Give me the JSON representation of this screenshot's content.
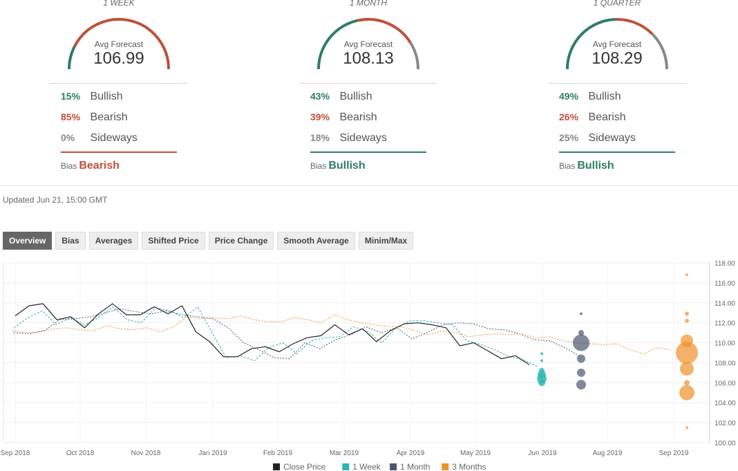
{
  "forecasts": [
    {
      "period": "1 WEEK",
      "avg_label": "Avg Forecast",
      "avg": "106.99",
      "bullish_pct": "15%",
      "bearish_pct": "85%",
      "sideways_pct": "0%",
      "bias_label": "Bias",
      "bias": "Bearish",
      "bias_color": "#c0503a",
      "shares": [
        0.15,
        0.85,
        0.0
      ]
    },
    {
      "period": "1 MONTH",
      "avg_label": "Avg Forecast",
      "avg": "108.13",
      "bullish_pct": "43%",
      "bearish_pct": "39%",
      "sideways_pct": "18%",
      "bias_label": "Bias",
      "bias": "Bullish",
      "bias_color": "#2e7d62",
      "shares": [
        0.43,
        0.39,
        0.18
      ]
    },
    {
      "period": "1 QUARTER",
      "avg_label": "Avg Forecast",
      "avg": "108.29",
      "bullish_pct": "49%",
      "bearish_pct": "26%",
      "sideways_pct": "25%",
      "bias_label": "Bias",
      "bias": "Bullish",
      "bias_color": "#2e7d62",
      "shares": [
        0.49,
        0.26,
        0.25
      ]
    }
  ],
  "labels": {
    "bullish": "Bullish",
    "bearish": "Bearish",
    "sideways": "Sideways"
  },
  "colors": {
    "bullish": "#2e7d62",
    "bearish": "#c0503a",
    "sideways": "#888888"
  },
  "updated": "Updated Jun 21, 15:00 GMT",
  "tabs": [
    "Overview",
    "Bias",
    "Averages",
    "Shifted Price",
    "Price Change",
    "Smooth Average",
    "Minim/Max"
  ],
  "chart_data": {
    "type": "line",
    "ylim": [
      100,
      118
    ],
    "y_ticks": [
      "100.00",
      "102.00",
      "104.00",
      "106.00",
      "108.00",
      "110.00",
      "112.00",
      "114.00",
      "116.00",
      "118.00"
    ],
    "x_labels": [
      "Sep 2018",
      "Oct 2018",
      "Nov 2018",
      "Jan 2019",
      "Feb 2019",
      "Mar 2019",
      "Apr 2019",
      "May 2019",
      "Jun 2019",
      "Aug 2019",
      "Sep 2019"
    ],
    "legend": [
      "Close Price",
      "1 Week",
      "1 Month",
      "3 Months"
    ],
    "legend_colors": [
      "#222222",
      "#2bb5b0",
      "#4a5670",
      "#f0902a"
    ],
    "close_price": [
      112.7,
      113.7,
      113.9,
      112.3,
      112.6,
      111.5,
      112.9,
      113.9,
      112.8,
      112.8,
      113.6,
      112.9,
      113.7,
      111.1,
      110.1,
      108.6,
      108.6,
      109.4,
      109.6,
      109.1,
      109.9,
      110.5,
      110.7,
      111.8,
      110.8,
      111.4,
      110.1,
      111.2,
      111.9,
      112.0,
      111.8,
      111.5,
      109.7,
      110.0,
      109.2,
      108.4,
      108.7,
      107.8
    ],
    "week": [
      111.5,
      112.5,
      113.2,
      111.8,
      112.5,
      111.8,
      112.5,
      113.6,
      112.3,
      112.0,
      113.5,
      113.2,
      112.5,
      113.6,
      111.0,
      108.5,
      108.7,
      108.2,
      109.5,
      110.0,
      108.9,
      110.2,
      110.5,
      110.6,
      111.6,
      111.1,
      110.0,
      111.5,
      112.2,
      112.2,
      112.0,
      111.8,
      110.2,
      109.8,
      109.3,
      108.6,
      108.3,
      107.6
    ],
    "month": [
      111.0,
      110.9,
      111.2,
      112.3,
      112.4,
      112.6,
      113.0,
      113.4,
      113.1,
      112.9,
      113.2,
      112.8,
      112.6,
      112.4,
      111.5,
      110.0,
      109.3,
      108.5,
      108.4,
      110.0,
      109.4,
      110.3,
      110.8,
      111.6,
      111.0,
      111.5,
      110.4,
      111.0,
      111.8,
      112.0,
      111.9,
      111.4,
      111.3,
      110.9,
      110.3,
      110.2,
      109.5,
      108.6
    ],
    "three_months": [
      111.2,
      111.0,
      111.1,
      111.4,
      111.5,
      111.3,
      111.2,
      111.7,
      111.4,
      111.3,
      111.5,
      111.1,
      111.6,
      112.6,
      112.4,
      112.5,
      112.4,
      112.7,
      112.3,
      112.1,
      112.1,
      112.5,
      112.3,
      112.0,
      112.8,
      112.3,
      112.0,
      111.8,
      111.6,
      111.6,
      111.2,
      110.8,
      111.2,
      111.0,
      110.6,
      110.8,
      110.9,
      110.8,
      110.9,
      110.5,
      110.6,
      110.2,
      110.0,
      109.9,
      109.8,
      109.9,
      109.3,
      108.9,
      109.5,
      109.3
    ],
    "week_points": [
      {
        "y": 108.9,
        "size": 2
      },
      {
        "y": 108.2,
        "size": 2
      },
      {
        "y": 107.2,
        "size": 4
      },
      {
        "y": 106.8,
        "size": 6
      },
      {
        "y": 106.4,
        "size": 7
      },
      {
        "y": 106.0,
        "size": 5
      }
    ],
    "month_points": [
      {
        "y": 112.9,
        "size": 2
      },
      {
        "y": 111.0,
        "size": 4
      },
      {
        "y": 110.0,
        "size": 12
      },
      {
        "y": 108.4,
        "size": 6
      },
      {
        "y": 107.0,
        "size": 6
      },
      {
        "y": 105.8,
        "size": 7
      }
    ],
    "quarter_points": [
      {
        "y": 116.8,
        "size": 2
      },
      {
        "y": 112.9,
        "size": 3
      },
      {
        "y": 112.2,
        "size": 3
      },
      {
        "y": 110.2,
        "size": 9
      },
      {
        "y": 109.0,
        "size": 16
      },
      {
        "y": 107.4,
        "size": 10
      },
      {
        "y": 106.0,
        "size": 4
      },
      {
        "y": 105.0,
        "size": 11
      },
      {
        "y": 101.5,
        "size": 2
      }
    ]
  }
}
